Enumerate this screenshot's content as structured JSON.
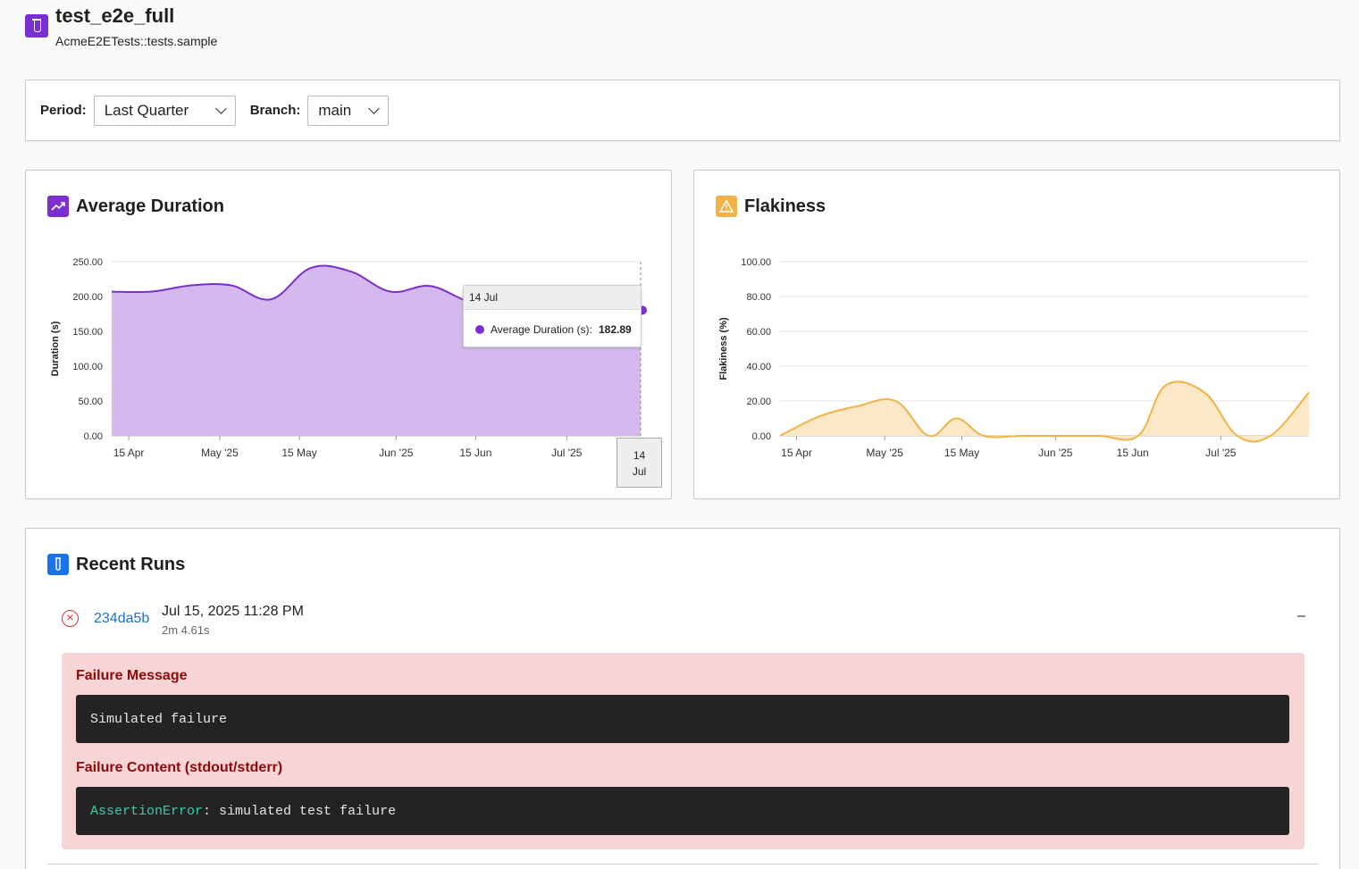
{
  "header": {
    "title": "test_e2e_full",
    "subtitle": "AcmeE2ETests::tests.sample",
    "icon": "test-tube-icon"
  },
  "filters": {
    "period_label": "Period:",
    "period_value": "Last Quarter",
    "branch_label": "Branch:",
    "branch_value": "main"
  },
  "duration_panel": {
    "title": "Average Duration",
    "icon": "trending-up-icon",
    "tooltip": {
      "date": "14 Jul",
      "series": "Average Duration (s):",
      "value": "182.89"
    },
    "hover_axis_label": [
      "14",
      "Jul"
    ]
  },
  "flakiness_panel": {
    "title": "Flakiness",
    "icon": "warning-icon"
  },
  "chart_data": [
    {
      "type": "area",
      "ylabel": "Duration (s)",
      "ylim": [
        0,
        250
      ],
      "yticks": [
        "0.00",
        "50.00",
        "100.00",
        "150.00",
        "200.00",
        "250.00"
      ],
      "xticks": [
        "15 Apr",
        "May '25",
        "15 May",
        "Jun '25",
        "15 Jun",
        "Jul '25"
      ],
      "color": "#7b2fd0",
      "fill": "#d4b8ee",
      "series": [
        {
          "name": "Average Duration (s)",
          "x": [
            "2025-04-12",
            "2025-04-19",
            "2025-04-26",
            "2025-05-03",
            "2025-05-10",
            "2025-05-17",
            "2025-05-24",
            "2025-05-31",
            "2025-06-07",
            "2025-06-14",
            "2025-06-21",
            "2025-06-28",
            "2025-07-05",
            "2025-07-14"
          ],
          "values": [
            207,
            207,
            216,
            216,
            196,
            241,
            236,
            207,
            215,
            192,
            183,
            180,
            180,
            182.89
          ]
        }
      ]
    },
    {
      "type": "area",
      "ylabel": "Flakiness (%)",
      "ylim": [
        0,
        100
      ],
      "yticks": [
        "0.00",
        "20.00",
        "40.00",
        "60.00",
        "80.00",
        "100.00"
      ],
      "xticks": [
        "15 Apr",
        "May '25",
        "15 May",
        "Jun '25",
        "15 Jun",
        "Jul '25"
      ],
      "color": "#f1b347",
      "fill": "#fbe8c6",
      "series": [
        {
          "x": [
            "2025-04-12",
            "2025-04-19",
            "2025-04-26",
            "2025-05-03",
            "2025-05-09",
            "2025-05-14",
            "2025-05-19",
            "2025-05-26",
            "2025-06-02",
            "2025-06-09",
            "2025-06-16",
            "2025-06-21",
            "2025-06-28",
            "2025-07-04",
            "2025-07-10",
            "2025-07-17"
          ],
          "values": [
            0,
            11,
            17,
            20,
            0,
            10,
            0,
            0,
            0,
            0,
            0,
            29,
            25,
            0,
            0,
            25
          ]
        }
      ]
    }
  ],
  "runs": {
    "title": "Recent Runs",
    "icon": "test-tube-icon",
    "items": [
      {
        "status_icon": "failed-icon",
        "commit": "234da5b",
        "date": "Jul 15, 2025 11:28 PM",
        "duration": "2m 4.61s",
        "toggle": "–",
        "failure_message_label": "Failure Message",
        "failure_message": "Simulated failure",
        "failure_content_label": "Failure Content (stdout/stderr)",
        "failure_content_type": "AssertionError",
        "failure_content_text": ": simulated test failure"
      }
    ]
  }
}
